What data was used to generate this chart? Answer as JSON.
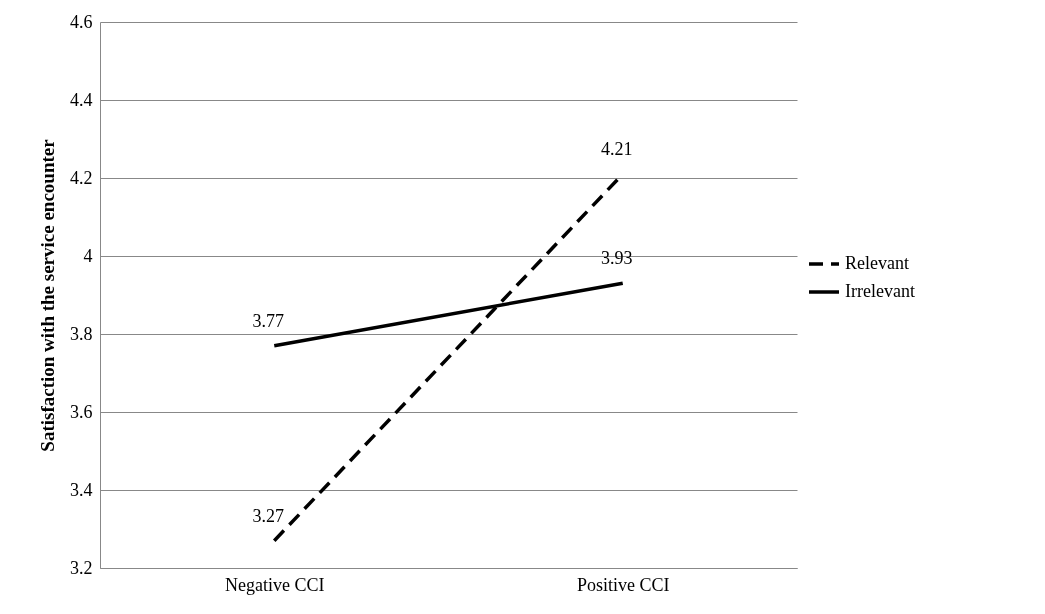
{
  "chart_data": {
    "type": "line",
    "ylabel": "Satisfaction with the service encounter",
    "categories": [
      "Negative CCI",
      "Positive CCI"
    ],
    "series": [
      {
        "name": "Relevant",
        "color": "#000000",
        "line_style": "dashed",
        "values": [
          3.27,
          4.21
        ]
      },
      {
        "name": "Irrelevant",
        "color": "#000000",
        "line_style": "solid",
        "values": [
          3.77,
          3.93
        ]
      }
    ],
    "ylim": [
      3.2,
      4.6
    ],
    "yticks": [
      3.2,
      3.4,
      3.6,
      3.8,
      4,
      4.2,
      4.4,
      4.6
    ],
    "grid": "y",
    "legend": "right",
    "data_labels": true,
    "marker": "none"
  }
}
